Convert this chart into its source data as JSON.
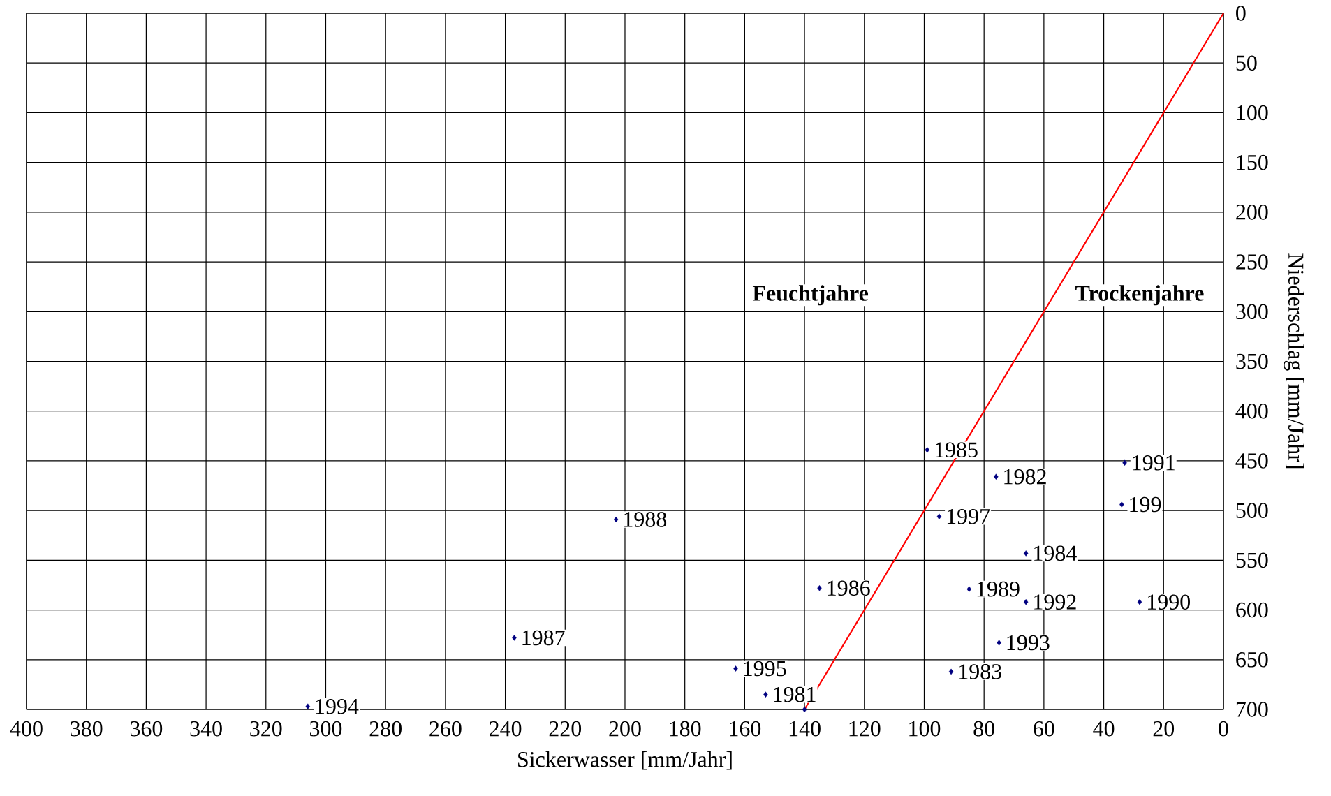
{
  "chart_data": {
    "type": "scatter",
    "xlabel": "Sickerwasser [mm/Jahr]",
    "ylabel": "Niederschlag [mm/Jahr]",
    "xlim": [
      400,
      0
    ],
    "ylim": [
      700,
      0
    ],
    "xticks": [
      400,
      380,
      360,
      340,
      320,
      300,
      280,
      260,
      240,
      220,
      200,
      180,
      160,
      140,
      120,
      100,
      80,
      60,
      40,
      20,
      0
    ],
    "yticks": [
      0,
      50,
      100,
      150,
      200,
      250,
      300,
      350,
      400,
      450,
      500,
      550,
      600,
      650,
      700
    ],
    "grid": true,
    "annotations": [
      "Feuchtjahre",
      "Trockenjahre",
      {
        "text": "1994",
        "x": 306,
        "y": 697
      },
      {
        "text": "1987",
        "x": 237,
        "y": 628
      },
      {
        "text": "1988",
        "x": 203,
        "y": 509
      },
      {
        "text": "1995",
        "x": 163,
        "y": 659
      },
      {
        "text": "1981",
        "x": 153,
        "y": 685
      },
      {
        "text": "1986",
        "x": 135,
        "y": 578
      },
      {
        "text": "1985",
        "x": 99,
        "y": 439
      },
      {
        "text": "1982",
        "x": 76,
        "y": 466
      },
      {
        "text": "1997",
        "x": 95,
        "y": 506
      },
      {
        "text": "1991",
        "x": 33,
        "y": 452
      },
      {
        "text": "199",
        "x": 34,
        "y": 494
      },
      {
        "text": "1984",
        "x": 66,
        "y": 543
      },
      {
        "text": "1989",
        "x": 85,
        "y": 579
      },
      {
        "text": "1992",
        "x": 66,
        "y": 592
      },
      {
        "text": "1990",
        "x": 28,
        "y": 592
      },
      {
        "text": "1993",
        "x": 75,
        "y": 633
      },
      {
        "text": "1983",
        "x": 91,
        "y": 662
      }
    ],
    "series": [
      {
        "color": "#000080",
        "marker": "diamond",
        "x": [
          306,
          237,
          203,
          163,
          153,
          140,
          135,
          99,
          76,
          95,
          33,
          34,
          66,
          85,
          66,
          28,
          75,
          91
        ],
        "values": [
          697,
          628,
          509,
          659,
          685,
          700,
          578,
          439,
          466,
          506,
          452,
          494,
          543,
          579,
          592,
          592,
          633,
          662
        ]
      },
      {
        "type": "line",
        "color": "#ff0000",
        "marker": "none",
        "x": [
          140,
          0
        ],
        "values": [
          700,
          0
        ]
      }
    ]
  }
}
